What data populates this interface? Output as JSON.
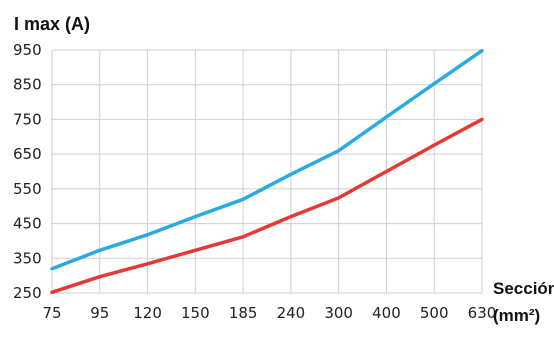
{
  "chart_data": {
    "type": "line",
    "ylabel": "I max (A)",
    "xlabel_line1": "Sección",
    "xlabel_line2": "(mm²)",
    "categories": [
      "75",
      "95",
      "120",
      "150",
      "185",
      "240",
      "300",
      "400",
      "500",
      "630"
    ],
    "yticks": [
      "950",
      "850",
      "750",
      "650",
      "550",
      "450",
      "350",
      "250"
    ],
    "ylim": [
      250,
      950
    ],
    "grid": true,
    "series": [
      {
        "color": "#29ABE2",
        "values": [
          320,
          373,
          418,
          470,
          520,
          592,
          660,
          757,
          853,
          948
        ]
      },
      {
        "color": "#E53935",
        "values": [
          252,
          297,
          334,
          373,
          412,
          470,
          524,
          600,
          676,
          750
        ]
      }
    ]
  }
}
